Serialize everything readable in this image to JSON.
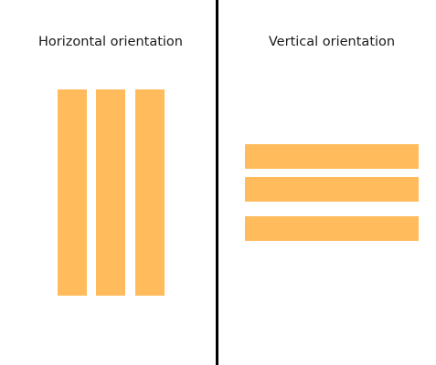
{
  "colors": {
    "bar": "#FFBB5C",
    "divider": "#000000",
    "background": "#FFFFFF"
  },
  "left_panel": {
    "title": "Horizontal orientation"
  },
  "right_panel": {
    "title": "Vertical orientation"
  }
}
